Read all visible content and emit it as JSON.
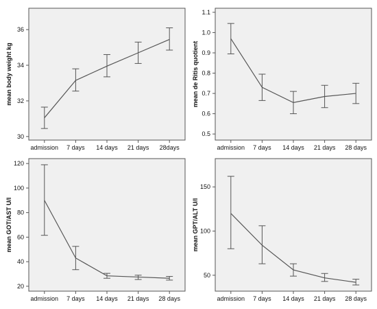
{
  "chart_data": [
    {
      "type": "line",
      "categories": [
        "admission",
        "7 days",
        "14 days",
        "21 days",
        "28days"
      ],
      "values": [
        31.05,
        33.15,
        33.95,
        34.7,
        35.45
      ],
      "error_low": [
        30.45,
        32.55,
        33.35,
        34.1,
        34.85
      ],
      "error_high": [
        31.65,
        33.8,
        34.6,
        35.3,
        36.1
      ],
      "ylabel": "mean body weight  kg",
      "ylim": [
        29.8,
        37.2
      ],
      "yticks": [
        30,
        32,
        34,
        36
      ],
      "grid": false
    },
    {
      "type": "line",
      "categories": [
        "admission",
        "7 days",
        "14 days",
        "21 days",
        "28 days"
      ],
      "values": [
        0.97,
        0.73,
        0.655,
        0.685,
        0.7
      ],
      "error_low": [
        0.895,
        0.665,
        0.6,
        0.63,
        0.65
      ],
      "error_high": [
        1.045,
        0.795,
        0.71,
        0.74,
        0.75
      ],
      "ylabel": "mean de Ritis quotient",
      "ylim": [
        0.47,
        1.12
      ],
      "yticks": [
        0.5,
        0.6,
        0.7,
        0.8,
        0.9,
        1.0,
        1.1
      ],
      "ytick_labels": [
        "0.5",
        "0.6",
        "0.7",
        "0.8",
        "0.9",
        "1.0",
        "1.1"
      ],
      "grid": false
    },
    {
      "type": "line",
      "categories": [
        "admission",
        "7 days",
        "14 days",
        "21 days",
        "28 days"
      ],
      "values": [
        90,
        43,
        28.5,
        27.5,
        26.5
      ],
      "error_low": [
        61.5,
        33.5,
        26.5,
        25.5,
        25
      ],
      "error_high": [
        119,
        52.5,
        30.5,
        29,
        28
      ],
      "ylabel": "mean GOT/AST  U/l",
      "ylim": [
        16,
        124
      ],
      "yticks": [
        20,
        40,
        60,
        80,
        100,
        120
      ],
      "grid": false
    },
    {
      "type": "line",
      "categories": [
        "admission",
        "7 days",
        "14 days",
        "21 days",
        "28 days"
      ],
      "values": [
        120,
        84,
        56,
        47,
        42
      ],
      "error_low": [
        80,
        63,
        49,
        43,
        39
      ],
      "error_high": [
        162,
        106,
        63,
        52,
        45.5
      ],
      "ylabel": "mean GPT/ALT  U/l",
      "ylim": [
        32,
        182
      ],
      "yticks": [
        50,
        100,
        150
      ],
      "grid": false
    }
  ]
}
